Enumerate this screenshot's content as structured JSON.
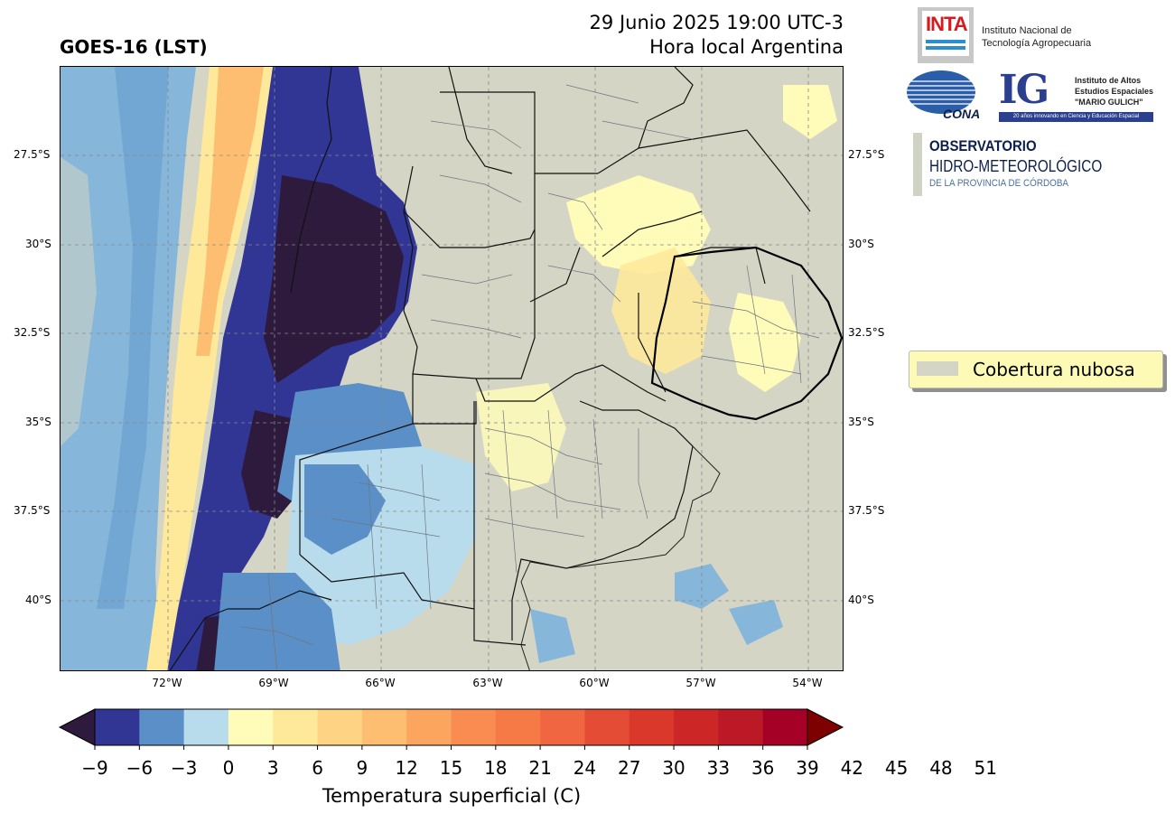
{
  "header": {
    "title_left": "GOES-16 (LST)",
    "title_right_line1": "29 Junio 2025 19:00 UTC-3",
    "title_right_line2": "Hora local Argentina"
  },
  "map": {
    "lat_labels": [
      "27.5°S",
      "30°S",
      "32.5°S",
      "35°S",
      "37.5°S",
      "40°S"
    ],
    "lon_labels": [
      "72°W",
      "69°W",
      "66°W",
      "63°W",
      "60°W",
      "57°W",
      "54°W"
    ],
    "cloud_color": "#d5d5c5"
  },
  "logos": {
    "inta_acronym": "INTA",
    "inta_name_line1": "Instituto Nacional de",
    "inta_name_line2": "Tecnología Agropecuaria",
    "conae_name": "CONAE",
    "ig_acronym": "IG",
    "ig_line1": "Instituto de Altos",
    "ig_line2": "Estudios Espaciales",
    "ig_line3": "\"MARIO GULICH\"",
    "ig_bar": "20 años innovando en Ciencia y Educación Espacial",
    "obs_line1": "OBSERVATORIO",
    "obs_line2": "HIDRO-METEOROLÓGICO",
    "obs_line3": "DE LA PROVINCIA DE CÓRDOBA"
  },
  "legend": {
    "label": "Cobertura nubosa"
  },
  "colorbar": {
    "title": "Temperatura superficial (C)",
    "ticks": [
      "−9",
      "−6",
      "−3",
      "0",
      "3",
      "6",
      "9",
      "12",
      "15",
      "18",
      "21",
      "24",
      "27",
      "30",
      "33",
      "36",
      "39",
      "42",
      "45",
      "48",
      "51"
    ],
    "under_color": "#2d1a3c",
    "over_color": "#7f0000",
    "colors": [
      "#313695",
      "#5b8fc8",
      "#b9dcec",
      "#fffbb8",
      "#fee99a",
      "#fed384",
      "#fdbe71",
      "#fca55f",
      "#f88c51",
      "#f57a46",
      "#ef6640",
      "#e54c35",
      "#d9382a",
      "#cc2627",
      "#bb1925",
      "#a50026"
    ]
  }
}
